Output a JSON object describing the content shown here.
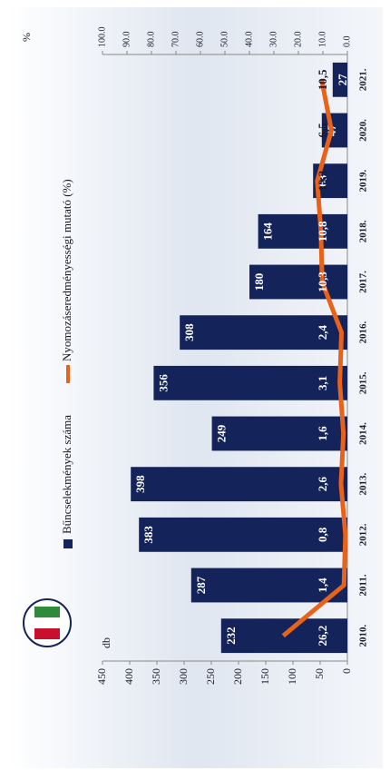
{
  "chart_data": {
    "type": "bar-line",
    "y_label": "db",
    "y2_label": "%",
    "categories": [
      "2010.",
      "2011.",
      "2012.",
      "2013.",
      "2014.",
      "2015.",
      "2016.",
      "2017.",
      "2018.",
      "2019.",
      "2020.",
      "2021."
    ],
    "series": [
      {
        "name": "Bűncselekmények száma",
        "color": "#14245a",
        "type": "bar",
        "values": [
          232,
          287,
          383,
          398,
          249,
          356,
          308,
          180,
          164,
          63,
          47,
          27
        ]
      },
      {
        "name": "Nyomozáseredményességi mutató (%)",
        "color": "#e8621a",
        "type": "line",
        "axis": "y2",
        "values": [
          26.2,
          1.4,
          0.8,
          2.6,
          1.6,
          3.1,
          2.4,
          10.3,
          10.8,
          12.3,
          6.5,
          10.5
        ],
        "value_labels": [
          "26,2",
          "1,4",
          "0,8",
          "2,6",
          "1,6",
          "3,1",
          "2,4",
          "10,3",
          "10,8",
          "12,3",
          "6,5",
          "10,5"
        ]
      }
    ],
    "ylim": [
      0,
      450
    ],
    "yticks": [
      0,
      50,
      100,
      150,
      200,
      250,
      300,
      350,
      400,
      450
    ],
    "y2lim": [
      0,
      100
    ],
    "y2ticks": [
      {
        "value": 0,
        "label": "0.0"
      },
      {
        "value": 10,
        "label": "10.0"
      },
      {
        "value": 20,
        "label": "20.0"
      },
      {
        "value": 30,
        "label": "30.0"
      },
      {
        "value": 40,
        "label": "40.0"
      },
      {
        "value": 50,
        "label": "50.0"
      },
      {
        "value": 60,
        "label": "60.0"
      },
      {
        "value": 70,
        "label": "70.0"
      },
      {
        "value": 80,
        "label": "80.0"
      },
      {
        "value": 90,
        "label": "90.0"
      },
      {
        "value": 100,
        "label": "100.0"
      }
    ]
  }
}
